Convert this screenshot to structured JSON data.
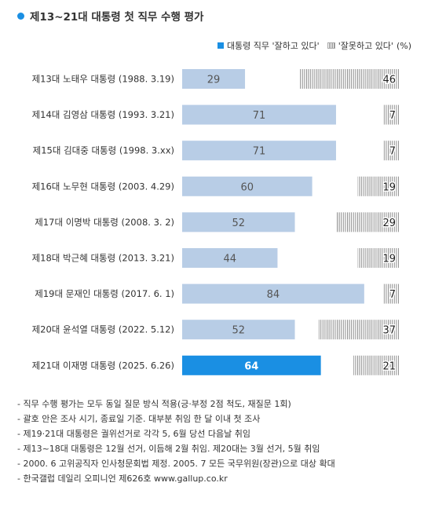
{
  "header": {
    "title": "제13~21대 대통령 첫 직무 수행 평가"
  },
  "legend": {
    "positive_label": "대통령 직무 '잘하고 있다'",
    "negative_label": "'잘못하고 있다'",
    "unit": "(%)"
  },
  "colors": {
    "positive": "#b8cde6",
    "highlight": "#1a8fe3",
    "negative_stripe": "#8c8c8c",
    "positive_text": "#555555",
    "highlight_text": "#ffffff"
  },
  "chart_data": {
    "type": "bar",
    "orientation": "horizontal",
    "stacked": true,
    "categories": [
      "제13대 노태우 대통령 (1988. 3.19)",
      "제14대 김영삼 대통령 (1993. 3.21)",
      "제15대 김대중 대통령 (1998. 3.xx)",
      "제16대 노무현 대통령 (2003. 4.29)",
      "제17대 이명박 대통령 (2008. 3. 2)",
      "제18대 박근혜 대통령 (2013. 3.21)",
      "제19대 문재인 대통령 (2017. 6. 1)",
      "제20대 윤석열 대통령 (2022. 5.12)",
      "제21대 이재명 대통령 (2025. 6.26)"
    ],
    "series": [
      {
        "name": "대통령 직무 '잘하고 있다'",
        "values": [
          29,
          71,
          71,
          60,
          52,
          44,
          84,
          52,
          64
        ]
      },
      {
        "name": "'잘못하고 있다'",
        "values": [
          46,
          7,
          7,
          19,
          29,
          19,
          7,
          37,
          21
        ]
      }
    ],
    "highlight_index": 8,
    "xlim": [
      0,
      100
    ],
    "unit": "(%)"
  },
  "notes": [
    "- 직무 수행 평가는 모두 동일 질문 방식 적용(긍·부정 2점 척도, 재질문 1회)",
    "- 괄호 안은 조사 시기, 종료일 기준. 대부분 취임 한 달 이내 첫 조사",
    "- 제19·21대 대통령은 궐위선거로 각각 5, 6월 당선 다음날 취임",
    "- 제13~18대 대통령은 12월 선거, 이듬해 2월 취임. 제20대는 3월 선거, 5월 취임",
    "- 2000. 6 고위공직자 인사청문회법 제정. 2005. 7 모든 국무위원(장관)으로 대상 확대",
    "- 한국갤럽 데일리 오피니언 제626호 www.gallup.co.kr"
  ]
}
